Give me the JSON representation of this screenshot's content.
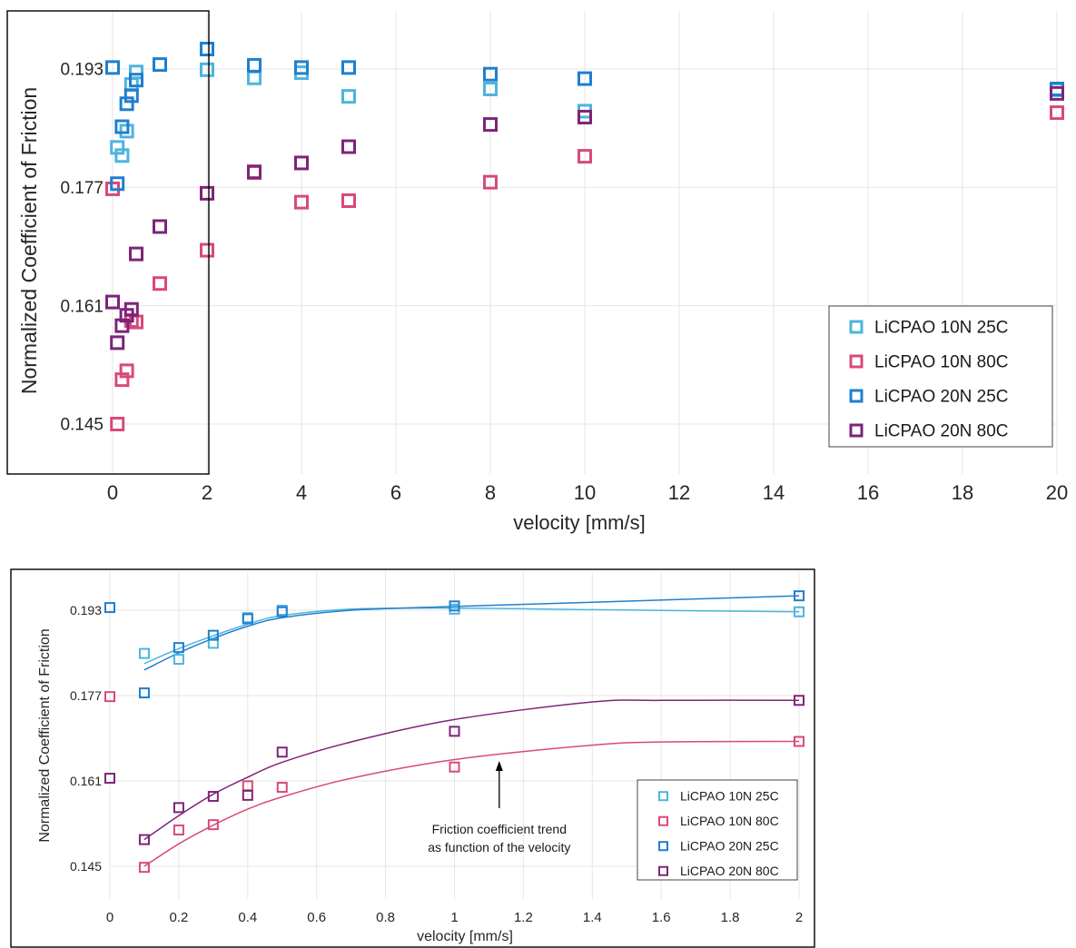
{
  "series_styles": [
    {
      "name": "LiCPAO 10N  25C",
      "color": "#4cb5dd"
    },
    {
      "name": "LiCPAO 10N  80C",
      "color": "#d9497a"
    },
    {
      "name": "LiCPAO 20N  25C",
      "color": "#1f7fcf"
    },
    {
      "name": "LiCPAO 20N  80C",
      "color": "#7e2478"
    }
  ],
  "chart_data": [
    {
      "type": "scatter",
      "title": "",
      "xlabel": "velocity [mm/s]",
      "ylabel": "Normalized Coefficient of Friction",
      "xlim": [
        0,
        20
      ],
      "ylim": [
        0.14,
        0.198
      ],
      "xticks": [
        0,
        2,
        4,
        6,
        8,
        10,
        12,
        14,
        16,
        18,
        20
      ],
      "yticks": [
        0.145,
        0.161,
        0.177,
        0.193
      ],
      "ytick_labels": [
        "0.145",
        "0.161",
        "0.177",
        "0.193"
      ],
      "grid": true,
      "legend_position": "bottom-right",
      "annotation": "",
      "series": [
        {
          "name": "LiCPAO 10N  25C",
          "x": [
            0.1,
            0.2,
            0.3,
            0.4,
            0.5,
            2,
            3,
            4,
            5,
            8,
            10,
            20
          ],
          "y": [
            0.1824,
            0.1813,
            0.1846,
            0.1909,
            0.1926,
            0.1929,
            0.1918,
            0.1925,
            0.1893,
            0.1903,
            0.1873,
            0.1902
          ]
        },
        {
          "name": "LiCPAO 10N  80C",
          "x": [
            0,
            0.1,
            0.2,
            0.3,
            0.4,
            0.5,
            1,
            2,
            3,
            4,
            5,
            8,
            10,
            20
          ],
          "y": [
            0.1768,
            0.145,
            0.151,
            0.1522,
            0.159,
            0.1588,
            0.164,
            0.1685,
            0.179,
            0.175,
            0.1752,
            0.1777,
            0.1812,
            0.1871
          ]
        },
        {
          "name": "LiCPAO 20N  25C",
          "x": [
            0,
            0.1,
            0.2,
            0.3,
            0.4,
            0.5,
            1,
            2,
            3,
            4,
            5,
            8,
            10,
            20
          ],
          "y": [
            0.1932,
            0.1775,
            0.1852,
            0.1883,
            0.1894,
            0.1915,
            0.1936,
            0.1957,
            0.1935,
            0.1932,
            0.1932,
            0.1923,
            0.1917,
            0.1903
          ]
        },
        {
          "name": "LiCPAO 20N  80C",
          "x": [
            0,
            0.1,
            0.2,
            0.3,
            0.4,
            0.5,
            1,
            2,
            3,
            4,
            5,
            8,
            10,
            20
          ],
          "y": [
            0.1615,
            0.156,
            0.1583,
            0.1597,
            0.1605,
            0.168,
            0.1717,
            0.1762,
            0.1791,
            0.1803,
            0.1825,
            0.1855,
            0.1865,
            0.1897
          ]
        }
      ]
    },
    {
      "type": "scatter",
      "title": "",
      "xlabel": "velocity [mm/s]",
      "ylabel": "Normalized Coefficient of Friction",
      "xlim": [
        0,
        2
      ],
      "ylim": [
        0.14,
        0.198
      ],
      "xticks": [
        0,
        0.2,
        0.4,
        0.6,
        0.8,
        1,
        1.2,
        1.4,
        1.6,
        1.8,
        2
      ],
      "yticks": [
        0.145,
        0.161,
        0.177,
        0.193
      ],
      "ytick_labels": [
        "0.145",
        "0.161",
        "0.177",
        "0.193"
      ],
      "grid": true,
      "legend_position": "bottom-right",
      "annotation": "Friction coefficient trend\nas function of the velocity",
      "series": [
        {
          "name": "LiCPAO 10N  25C",
          "x": [
            0.1,
            0.2,
            0.3,
            0.4,
            0.5,
            1,
            2
          ],
          "y": [
            0.1849,
            0.1838,
            0.1868,
            0.1916,
            0.193,
            0.1932,
            0.1927
          ],
          "trend": {
            "x": [
              0.1,
              0.2,
              0.3,
              0.4,
              0.5,
              0.7,
              1.0,
              1.4,
              2.0
            ],
            "y": [
              0.183,
              0.1858,
              0.1882,
              0.1904,
              0.192,
              0.1932,
              0.1934,
              0.1931,
              0.1927
            ]
          }
        },
        {
          "name": "LiCPAO 10N  80C",
          "x": [
            0,
            0.1,
            0.2,
            0.3,
            0.4,
            0.5,
            1,
            2
          ],
          "y": [
            0.1768,
            0.1448,
            0.1518,
            0.1528,
            0.1601,
            0.1598,
            0.1636,
            0.1684
          ],
          "trend": {
            "x": [
              0.1,
              0.2,
              0.3,
              0.4,
              0.5,
              0.7,
              1.0,
              1.4,
              1.6,
              2.0
            ],
            "y": [
              0.145,
              0.1492,
              0.1527,
              0.1557,
              0.158,
              0.1615,
              0.165,
              0.1677,
              0.1683,
              0.1684
            ]
          }
        },
        {
          "name": "LiCPAO 20N  25C",
          "x": [
            0,
            0.1,
            0.2,
            0.3,
            0.4,
            0.5,
            1,
            2
          ],
          "y": [
            0.1935,
            0.1775,
            0.186,
            0.1883,
            0.1914,
            0.1927,
            0.1938,
            0.1957
          ],
          "trend": {
            "x": [
              0.1,
              0.2,
              0.3,
              0.4,
              0.5,
              0.7,
              1.0,
              1.4,
              2.0
            ],
            "y": [
              0.1818,
              0.185,
              0.1877,
              0.19,
              0.1916,
              0.193,
              0.1937,
              0.1945,
              0.1957
            ]
          }
        },
        {
          "name": "LiCPAO 20N  80C",
          "x": [
            0,
            0.1,
            0.2,
            0.3,
            0.4,
            0.5,
            1,
            2
          ],
          "y": [
            0.1615,
            0.15,
            0.156,
            0.1581,
            0.1583,
            0.1664,
            0.1703,
            0.1761
          ],
          "trend": {
            "x": [
              0.1,
              0.2,
              0.3,
              0.4,
              0.5,
              0.7,
              1.0,
              1.4,
              1.6,
              2.0
            ],
            "y": [
              0.15,
              0.1545,
              0.1585,
              0.1617,
              0.1645,
              0.1683,
              0.1725,
              0.1758,
              0.1761,
              0.1761
            ]
          }
        }
      ]
    }
  ]
}
